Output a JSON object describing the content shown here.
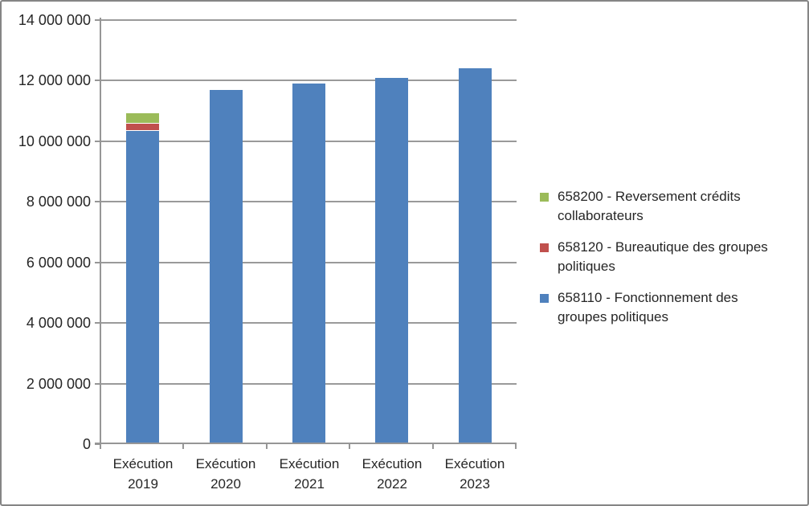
{
  "chart_data": {
    "type": "bar",
    "stacked": true,
    "title": "",
    "xlabel": "",
    "ylabel": "",
    "categories": [
      "Exécution 2019",
      "Exécution 2020",
      "Exécution 2021",
      "Exécution 2022",
      "Exécution 2023"
    ],
    "categories_lines": [
      [
        "Exécution",
        "2019"
      ],
      [
        "Exécution",
        "2020"
      ],
      [
        "Exécution",
        "2021"
      ],
      [
        "Exécution",
        "2022"
      ],
      [
        "Exécution",
        "2023"
      ]
    ],
    "series": [
      {
        "name": "658110 - Fonctionnement des groupes politiques",
        "legend_lines": [
          "658110 - Fonctionnement des",
          "groupes politiques"
        ],
        "color": "#4F81BD",
        "values": [
          10350000,
          11700000,
          11900000,
          12100000,
          12400000
        ]
      },
      {
        "name": "658120 - Bureautique des groupes politiques",
        "legend_lines": [
          "658120 - Bureautique des groupes",
          "politiques"
        ],
        "color": "#C0504D",
        "values": [
          220000,
          0,
          0,
          0,
          0
        ]
      },
      {
        "name": "658200 - Reversement crédits collaborateurs",
        "legend_lines": [
          "658200 - Reversement crédits",
          "collaborateurs"
        ],
        "color": "#9BBB59",
        "values": [
          360000,
          0,
          0,
          0,
          0
        ]
      }
    ],
    "ylim": [
      0,
      14000000
    ],
    "y_tick_step": 2000000,
    "y_tick_labels": [
      "0",
      "2 000 000",
      "4 000 000",
      "6 000 000",
      "8 000 000",
      "10 000 000",
      "12 000 000",
      "14 000 000"
    ],
    "grid": true,
    "legend_position": "right",
    "legend_order": "reversed",
    "colors": {
      "axis": "#969696",
      "gridline": "#9A9A9A",
      "text": "#262626",
      "frame_border": "#858585",
      "background": "#FFFFFF"
    }
  }
}
